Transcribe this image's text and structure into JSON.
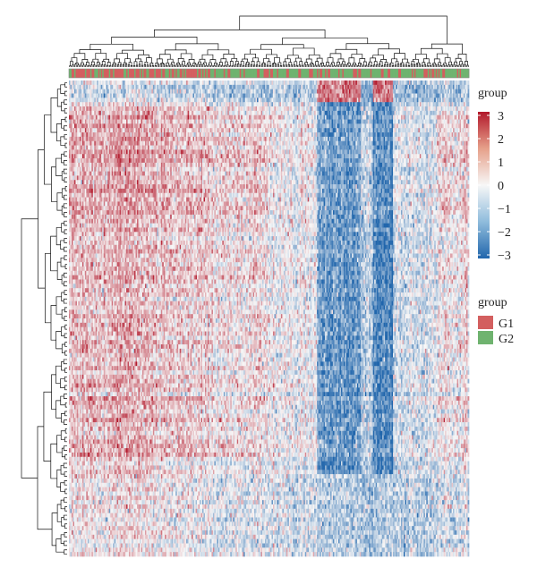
{
  "chart_data": {
    "type": "heatmap",
    "title": "",
    "xlabel": "",
    "ylabel": "",
    "rows": 110,
    "columns": 300,
    "row_dendrogram": true,
    "column_dendrogram": true,
    "column_annotation": {
      "title": "group",
      "levels": [
        {
          "label": "G1",
          "color": "#d35f5f"
        },
        {
          "label": "G2",
          "color": "#6fb36f"
        }
      ]
    },
    "color_scale": {
      "title": "group",
      "range": [
        -3,
        3
      ],
      "ticks": [
        "3",
        "2",
        "1",
        "0",
        "−1",
        "−2",
        "−3"
      ],
      "low_color": "#2166ac",
      "mid_color": "#f7f7f7",
      "high_color": "#b2182b"
    },
    "column_blocks": [
      {
        "from": 0.0,
        "to": 0.12,
        "bias": 0.75,
        "group": "G1"
      },
      {
        "from": 0.12,
        "to": 0.22,
        "bias": 0.95,
        "group": "G1"
      },
      {
        "from": 0.22,
        "to": 0.35,
        "bias": 0.45,
        "group": "G1"
      },
      {
        "from": 0.35,
        "to": 0.5,
        "bias": 0.25,
        "group": "G2"
      },
      {
        "from": 0.5,
        "to": 0.62,
        "bias": -0.15,
        "group": "G2"
      },
      {
        "from": 0.62,
        "to": 0.73,
        "bias": -1.9,
        "group": "G2"
      },
      {
        "from": 0.73,
        "to": 0.76,
        "bias": -0.9,
        "group": "G2"
      },
      {
        "from": 0.76,
        "to": 0.81,
        "bias": -2.4,
        "group": "G2"
      },
      {
        "from": 0.81,
        "to": 0.92,
        "bias": -0.5,
        "group": "G2"
      },
      {
        "from": 0.92,
        "to": 1.0,
        "bias": 0.15,
        "group": "G2"
      }
    ]
  }
}
